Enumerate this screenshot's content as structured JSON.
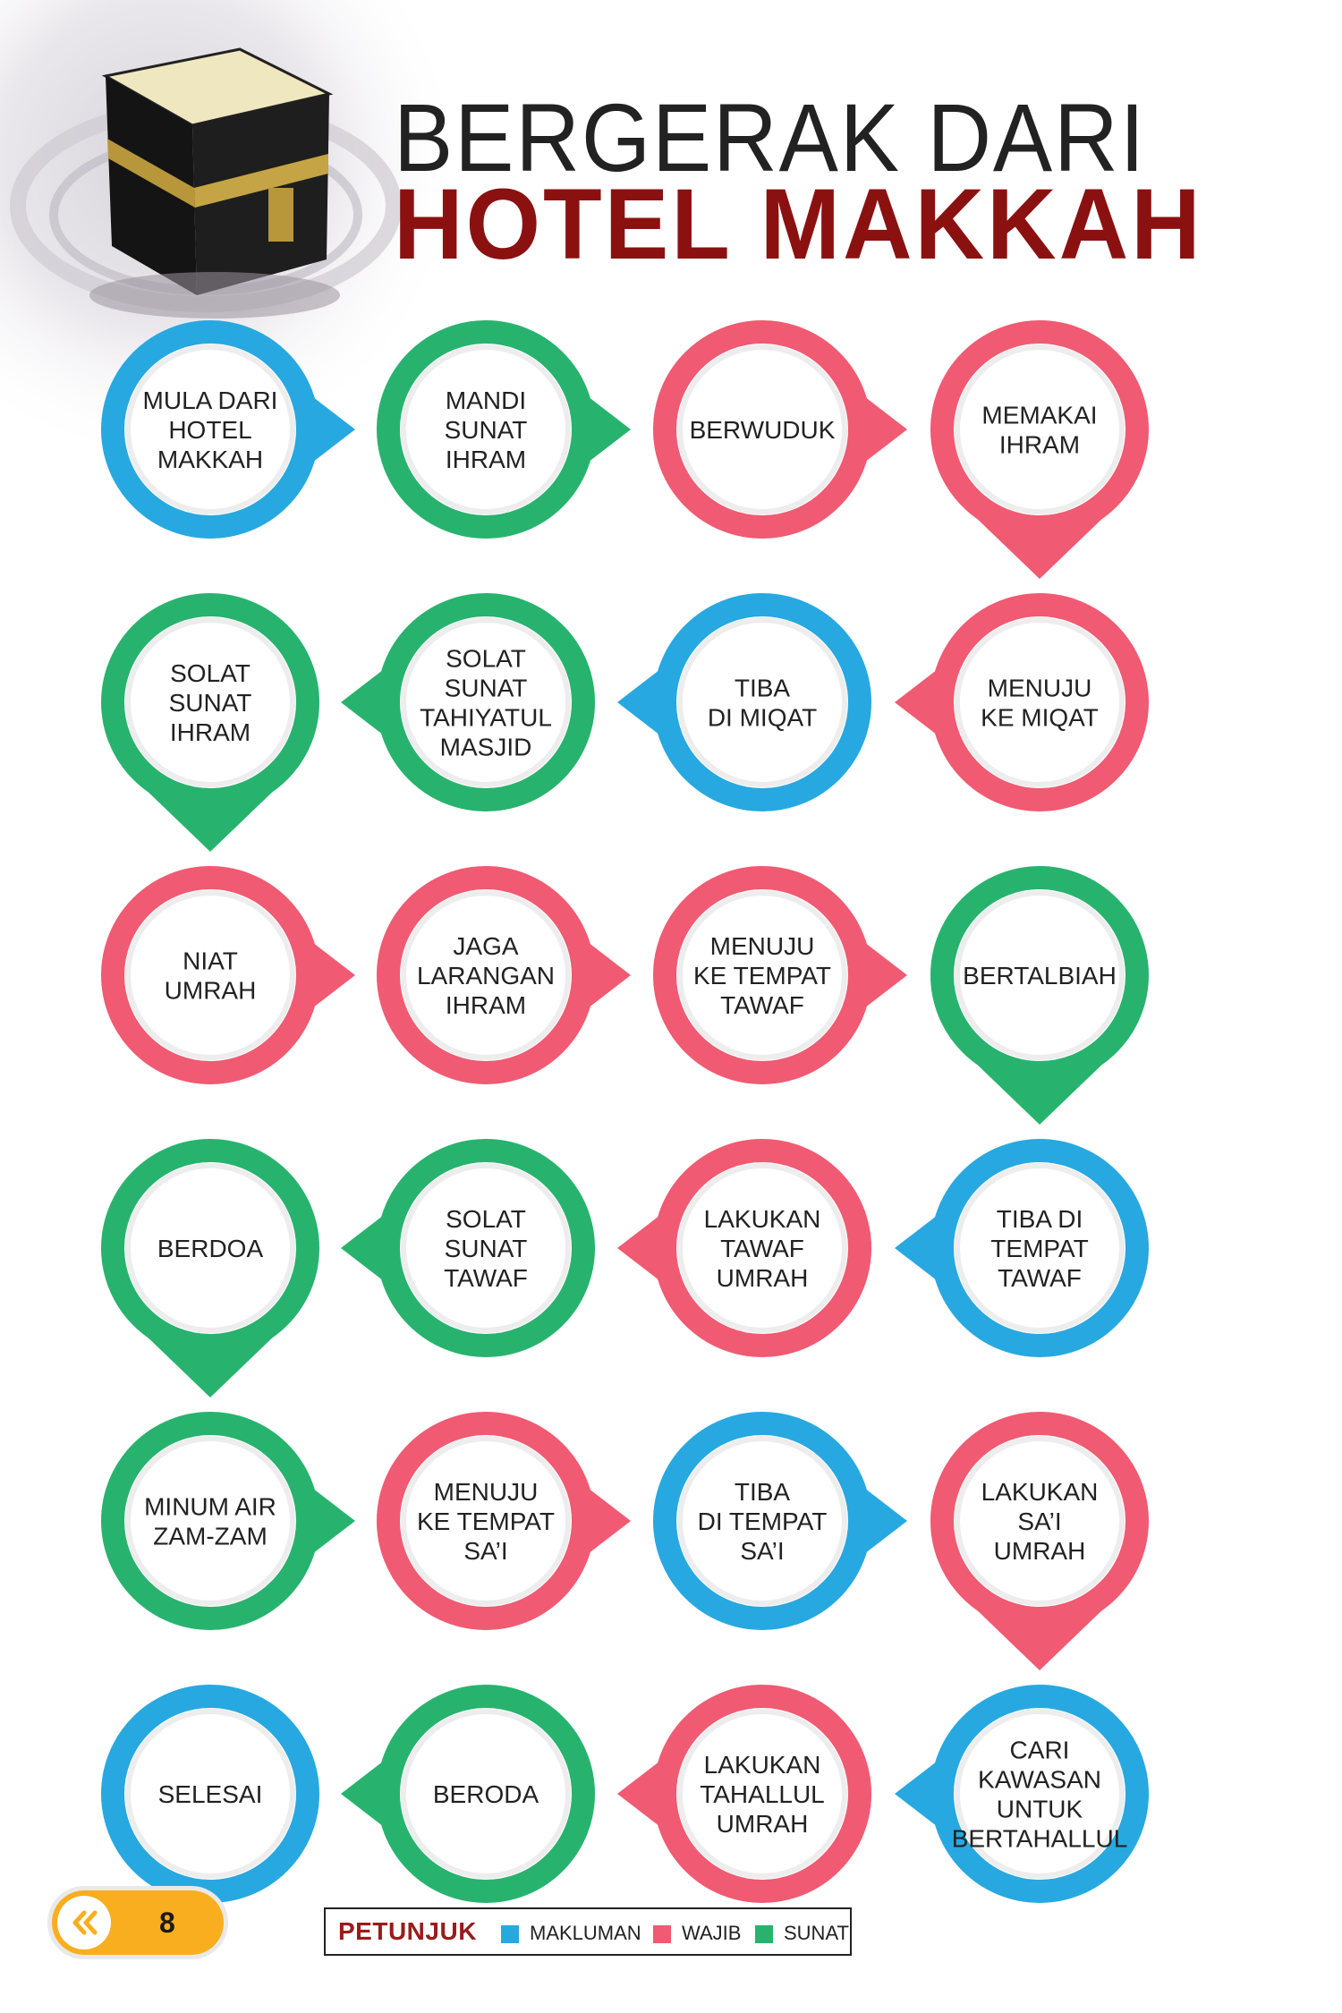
{
  "title": {
    "line1": "BERGERAK DARI",
    "line2": "HOTEL MAKKAH"
  },
  "colors": {
    "makluman": "#27a8e0",
    "wajib": "#f05a72",
    "sunat": "#27b36e",
    "title_accent": "#8b1111"
  },
  "steps": [
    {
      "lines": [
        "MULA DARI",
        "HOTEL",
        "MAKKAH"
      ],
      "type": "makluman"
    },
    {
      "lines": [
        "MANDI",
        "SUNAT",
        "IHRAM"
      ],
      "type": "sunat"
    },
    {
      "lines": [
        "BERWUDUK"
      ],
      "type": "wajib"
    },
    {
      "lines": [
        "MEMAKAI",
        "IHRAM"
      ],
      "type": "wajib"
    },
    {
      "lines": [
        "MENUJU",
        "KE MIQAT"
      ],
      "type": "wajib"
    },
    {
      "lines": [
        "TIBA",
        "DI MIQAT"
      ],
      "type": "makluman"
    },
    {
      "lines": [
        "SOLAT",
        "SUNAT",
        "TAHIYATUL",
        "MASJID"
      ],
      "type": "sunat"
    },
    {
      "lines": [
        "SOLAT",
        "SUNAT",
        "IHRAM"
      ],
      "type": "sunat"
    },
    {
      "lines": [
        "NIAT",
        "UMRAH"
      ],
      "type": "wajib"
    },
    {
      "lines": [
        "JAGA",
        "LARANGAN",
        "IHRAM"
      ],
      "type": "wajib"
    },
    {
      "lines": [
        "MENUJU",
        "KE TEMPAT",
        "TAWAF"
      ],
      "type": "wajib"
    },
    {
      "lines": [
        "BERTALBIAH"
      ],
      "type": "sunat"
    },
    {
      "lines": [
        "TIBA DI",
        "TEMPAT",
        "TAWAF"
      ],
      "type": "makluman"
    },
    {
      "lines": [
        "LAKUKAN",
        "TAWAF",
        "UMRAH"
      ],
      "type": "wajib"
    },
    {
      "lines": [
        "SOLAT",
        "SUNAT",
        "TAWAF"
      ],
      "type": "sunat"
    },
    {
      "lines": [
        "BERDOA"
      ],
      "type": "sunat"
    },
    {
      "lines": [
        "MINUM AIR",
        "ZAM-ZAM"
      ],
      "type": "sunat"
    },
    {
      "lines": [
        "MENUJU",
        "KE TEMPAT",
        "SA’I"
      ],
      "type": "wajib"
    },
    {
      "lines": [
        "TIBA",
        "DI TEMPAT",
        "SA’I"
      ],
      "type": "makluman"
    },
    {
      "lines": [
        "LAKUKAN",
        "SA’I",
        "UMRAH"
      ],
      "type": "wajib"
    },
    {
      "lines": [
        "CARI",
        "KAWASAN",
        "UNTUK",
        "BERTAHALLUL"
      ],
      "type": "makluman"
    },
    {
      "lines": [
        "LAKUKAN",
        "TAHALLUL",
        "UMRAH"
      ],
      "type": "wajib"
    },
    {
      "lines": [
        "BERODA"
      ],
      "type": "sunat"
    },
    {
      "lines": [
        "SELESAI"
      ],
      "type": "makluman"
    }
  ],
  "page_number": "8",
  "legend": {
    "heading": "PETUNJUK",
    "items": [
      {
        "label": "MAKLUMAN",
        "type": "makluman"
      },
      {
        "label": "WAJIB",
        "type": "wajib"
      },
      {
        "label": "SUNAT",
        "type": "sunat"
      }
    ]
  }
}
